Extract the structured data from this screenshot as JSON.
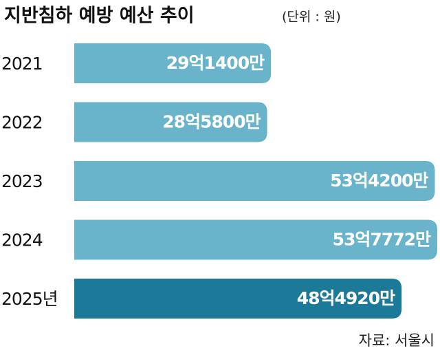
{
  "chart_data": {
    "type": "bar",
    "orientation": "horizontal",
    "title": "지반침하 예방 예산 추이",
    "subtitle": "(단위 : 원)",
    "source": "자료: 서울시",
    "categories": [
      "2021",
      "2022",
      "2023",
      "2024",
      "2025년"
    ],
    "values": [
      2914000000,
      2858000000,
      5342000000,
      5377720000,
      4849200000
    ],
    "value_labels": [
      "29억1400만",
      "28억5800만",
      "53억4200만",
      "53억7772만",
      "48억4920만"
    ],
    "colors": [
      "#6ab4cb",
      "#6ab4cb",
      "#6ab4cb",
      "#6ab4cb",
      "#1c7a98"
    ]
  }
}
